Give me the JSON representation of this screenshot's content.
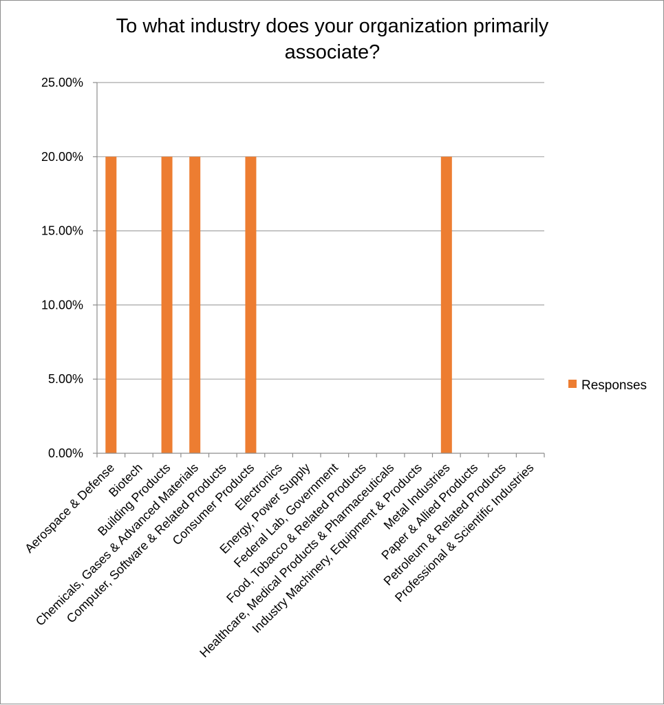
{
  "chart_data": {
    "type": "bar",
    "title_lines": [
      "To what industry does your organization primarily",
      "associate?"
    ],
    "xlabel": "",
    "ylabel": "",
    "ylim": [
      0,
      25
    ],
    "yticks": [
      "0.00%",
      "5.00%",
      "10.00%",
      "15.00%",
      "20.00%",
      "25.00%"
    ],
    "grid": true,
    "legend_position": "right",
    "categories": [
      "Aerospace & Defense",
      "Biotech",
      "Building Products",
      "Chemicals, Gases & Advanced Materials",
      "Computer, Software & Related Products",
      "Consumer Products",
      "Electronics",
      "Energy, Power Supply",
      "Federal Lab, Government",
      "Food, Tobacco & Related Products",
      "Healthcare, Medical Products & Pharmaceuticals",
      "Industry Machinery, Equipment & Products",
      "Metal Industries",
      "Paper & Allied Products",
      "Petroleum & Related Products",
      "Professional & Scientific Industries"
    ],
    "series": [
      {
        "name": "Responses",
        "color": "#ED7D31",
        "values": [
          20,
          0,
          20,
          20,
          0,
          20,
          0,
          0,
          0,
          0,
          0,
          0,
          20,
          0,
          0,
          0
        ]
      }
    ]
  }
}
